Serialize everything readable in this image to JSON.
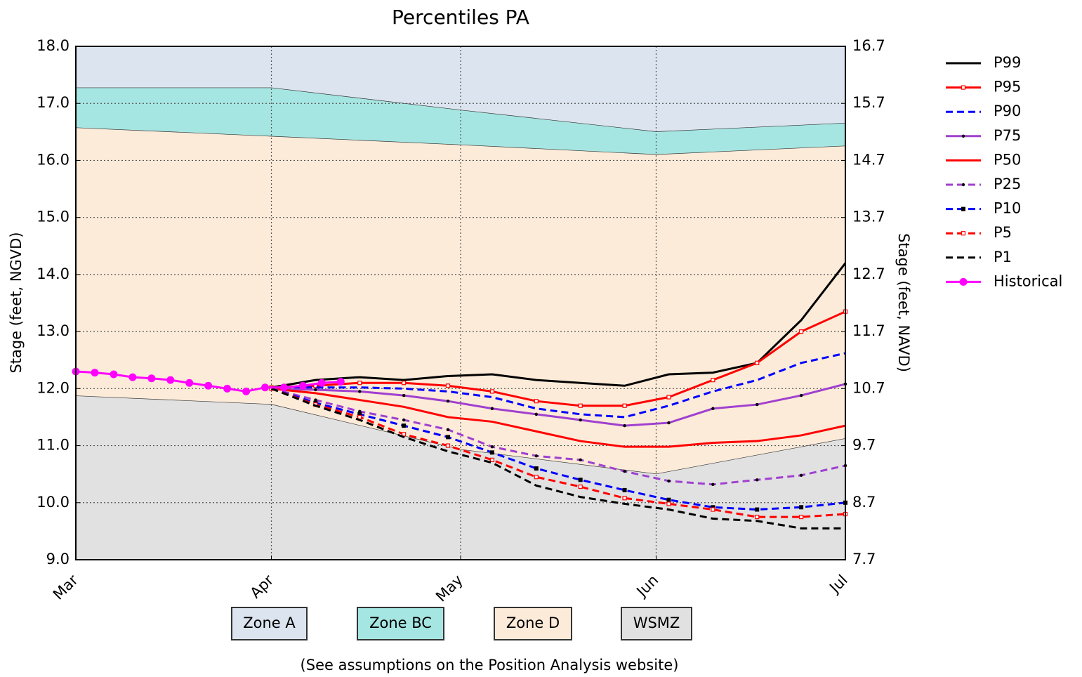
{
  "chart_data": {
    "type": "line",
    "title": "Percentiles PA",
    "y_label": "Stage (feet, NGVD)",
    "y2_label": "Stage (feet, NAVD)",
    "note": "(See assumptions on the Position Analysis website)",
    "xlim": [
      0,
      122
    ],
    "xticks": [
      {
        "value": 0,
        "label": "Mar"
      },
      {
        "value": 31,
        "label": "Apr"
      },
      {
        "value": 61,
        "label": "May"
      },
      {
        "value": 92,
        "label": "Jun"
      },
      {
        "value": 122,
        "label": "Jul"
      }
    ],
    "ylim": [
      9,
      18
    ],
    "yticks": [
      {
        "value": 9,
        "label": "9.0"
      },
      {
        "value": 10,
        "label": "10.0"
      },
      {
        "value": 11,
        "label": "11.0"
      },
      {
        "value": 12,
        "label": "12.0"
      },
      {
        "value": 13,
        "label": "13.0"
      },
      {
        "value": 14,
        "label": "14.0"
      },
      {
        "value": 15,
        "label": "15.0"
      },
      {
        "value": 16,
        "label": "16.0"
      },
      {
        "value": 17,
        "label": "17.0"
      },
      {
        "value": 18,
        "label": "18.0"
      }
    ],
    "y2lim": [
      7.7,
      16.7
    ],
    "y2ticks": [
      7.7,
      8.7,
      9.7,
      10.7,
      11.7,
      12.7,
      13.7,
      14.7,
      15.7,
      16.7
    ],
    "grid": true,
    "legend": "outside right",
    "zone_x": [
      0,
      31,
      61,
      92,
      122
    ],
    "zones": [
      {
        "name": "Zone A",
        "color": "#dbe4ef",
        "values": [
          17.27,
          17.27,
          16.88,
          16.5,
          16.65
        ]
      },
      {
        "name": "Zone BC",
        "color": "#a6e6e2",
        "values": [
          16.57,
          16.42,
          16.27,
          16.1,
          16.25
        ]
      },
      {
        "name": "Zone D",
        "color": "#fdebd9",
        "values": [
          11.87,
          11.72,
          10.93,
          10.5,
          11.12
        ]
      },
      {
        "name": "WSMZ",
        "color": "#e1e1e1"
      }
    ],
    "x": [
      31,
      38,
      45,
      52,
      59,
      66,
      73,
      80,
      87,
      94,
      101,
      108,
      115,
      122
    ],
    "series": [
      {
        "name": "P99",
        "color": "#000000",
        "dash": false,
        "marker": "none",
        "values": [
          12.02,
          12.15,
          12.2,
          12.15,
          12.22,
          12.25,
          12.15,
          12.1,
          12.05,
          12.25,
          12.28,
          12.45,
          13.2,
          14.2
        ]
      },
      {
        "name": "P95",
        "color": "#ff0000",
        "dash": false,
        "marker": "open-square",
        "values": [
          12.02,
          12.05,
          12.1,
          12.1,
          12.05,
          11.95,
          11.78,
          11.7,
          11.7,
          11.85,
          12.15,
          12.45,
          13.0,
          13.35
        ]
      },
      {
        "name": "P90",
        "color": "#0000ff",
        "dash": true,
        "marker": "none",
        "values": [
          12.02,
          12.02,
          12.02,
          12.0,
          11.95,
          11.85,
          11.65,
          11.55,
          11.5,
          11.7,
          11.95,
          12.15,
          12.45,
          12.62
        ]
      },
      {
        "name": "P75",
        "color": "#a040d0",
        "dash": false,
        "marker": "dot",
        "values": [
          12.0,
          11.98,
          11.95,
          11.88,
          11.78,
          11.65,
          11.55,
          11.45,
          11.35,
          11.4,
          11.65,
          11.72,
          11.88,
          12.08
        ]
      },
      {
        "name": "P50",
        "color": "#ff0000",
        "dash": false,
        "marker": "none",
        "values": [
          12.0,
          11.92,
          11.8,
          11.68,
          11.5,
          11.42,
          11.25,
          11.08,
          10.98,
          10.98,
          11.05,
          11.08,
          11.18,
          11.35
        ]
      },
      {
        "name": "P25",
        "color": "#a040d0",
        "dash": true,
        "marker": "dot",
        "values": [
          12.0,
          11.8,
          11.6,
          11.45,
          11.28,
          10.98,
          10.82,
          10.75,
          10.55,
          10.38,
          10.32,
          10.4,
          10.48,
          10.65
        ]
      },
      {
        "name": "P10",
        "color": "#0000ff",
        "dash": true,
        "marker": "square",
        "values": [
          12.0,
          11.75,
          11.55,
          11.35,
          11.15,
          10.88,
          10.6,
          10.4,
          10.22,
          10.05,
          9.92,
          9.88,
          9.92,
          10.0
        ]
      },
      {
        "name": "P5",
        "color": "#ff0000",
        "dash": true,
        "marker": "open-square",
        "values": [
          12.0,
          11.72,
          11.5,
          11.2,
          11.0,
          10.75,
          10.45,
          10.28,
          10.08,
          9.98,
          9.88,
          9.75,
          9.75,
          9.8
        ]
      },
      {
        "name": "P1",
        "color": "#000000",
        "dash": true,
        "marker": "none",
        "values": [
          12.0,
          11.7,
          11.45,
          11.15,
          10.9,
          10.7,
          10.3,
          10.1,
          9.98,
          9.88,
          9.72,
          9.68,
          9.55,
          9.55
        ]
      },
      {
        "name": "Historical",
        "color": "#ff00ff",
        "dash": false,
        "marker": "circle",
        "x": [
          0,
          3,
          6,
          9,
          12,
          15,
          18,
          21,
          24,
          27,
          30,
          33,
          36,
          39,
          42
        ],
        "values": [
          12.3,
          12.28,
          12.25,
          12.2,
          12.18,
          12.15,
          12.1,
          12.05,
          12.0,
          11.95,
          12.02,
          12.02,
          12.05,
          12.1,
          12.12
        ]
      }
    ]
  }
}
